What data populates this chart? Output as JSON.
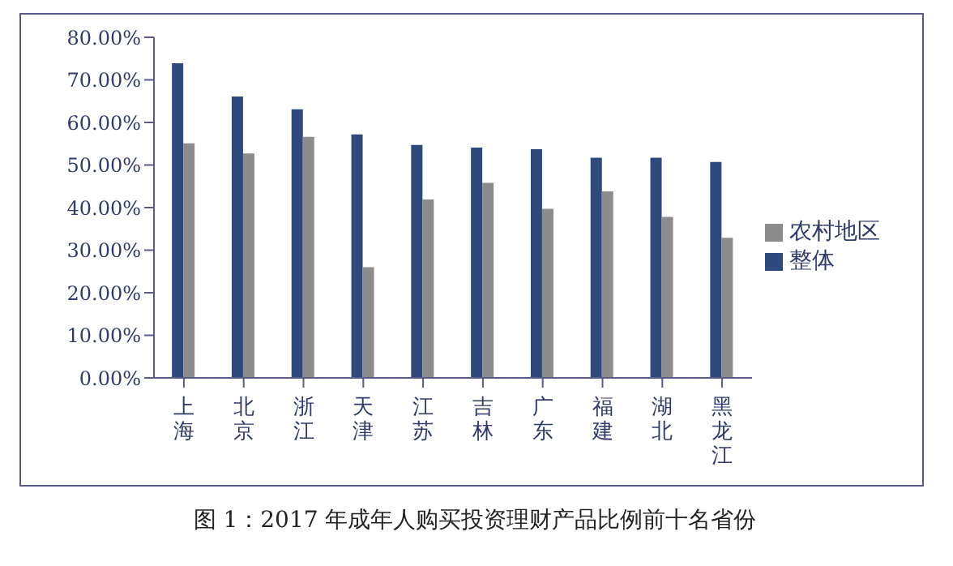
{
  "chart_data": {
    "type": "bar",
    "title": "图 1：2017 年成年人购买投资理财产品比例前十名省份",
    "categories": [
      "上海",
      "北京",
      "浙江",
      "天津",
      "江苏",
      "吉林",
      "广东",
      "福建",
      "湖北",
      "黑龙江"
    ],
    "series": [
      {
        "name": "整体",
        "color": "#2e4a7c",
        "values": [
          73.9,
          66.1,
          63.1,
          57.2,
          54.7,
          54.1,
          53.7,
          51.7,
          51.7,
          50.7
        ]
      },
      {
        "name": "农村地区",
        "color": "#8c8c8c",
        "values": [
          55.1,
          52.7,
          56.6,
          26.0,
          41.9,
          45.8,
          39.7,
          43.8,
          37.8,
          32.9
        ]
      }
    ],
    "ylim": [
      0,
      80
    ],
    "yticks": [
      {
        "value": 0,
        "label": "0.00%"
      },
      {
        "value": 10,
        "label": "10.00%"
      },
      {
        "value": 20,
        "label": "20.00%"
      },
      {
        "value": 30,
        "label": "30.00%"
      },
      {
        "value": 40,
        "label": "40.00%"
      },
      {
        "value": 50,
        "label": "50.00%"
      },
      {
        "value": 60,
        "label": "60.00%"
      },
      {
        "value": 70,
        "label": "70.00%"
      },
      {
        "value": 80,
        "label": "80.00%"
      }
    ],
    "grid": false,
    "legend": "right"
  }
}
